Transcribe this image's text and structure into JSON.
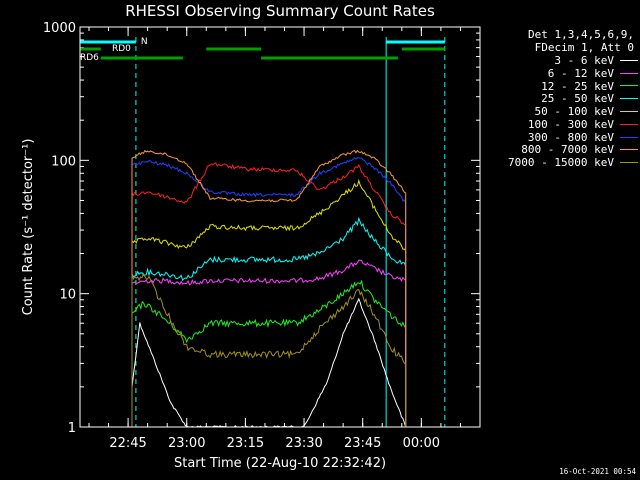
{
  "chart_data": {
    "type": "line",
    "title": "RHESSI Observing Summary Count Rates",
    "xlabel": "Start Time (22-Aug-10 22:32:42)",
    "ylabel": "Count Rate (s⁻¹ detector⁻¹)",
    "yscale": "log",
    "ylim": [
      1,
      1000
    ],
    "y_ticks": [
      {
        "value": 1,
        "label": "1"
      },
      {
        "value": 10,
        "label": "10"
      },
      {
        "value": 100,
        "label": "100"
      },
      {
        "value": 1000,
        "label": "1000"
      }
    ],
    "xlim": [
      "22:32:42",
      "00:15:00"
    ],
    "x_ticks": [
      {
        "time": "22:45",
        "label": "22:45"
      },
      {
        "time": "23:00",
        "label": "23:00"
      },
      {
        "time": "23:15",
        "label": "23:15"
      },
      {
        "time": "23:30",
        "label": "23:30"
      },
      {
        "time": "23:45",
        "label": "23:45"
      },
      {
        "time": "00:00",
        "label": "00:00"
      }
    ],
    "legend_header": [
      "Det 1,3,4,5,6,9,",
      "FDecim 1, Att 0"
    ],
    "legend_position": "right",
    "series": [
      {
        "name": "3 - 6 keV",
        "color": "#ffffff",
        "points": [
          [
            "22:46",
            "2"
          ],
          [
            "22:48",
            "6"
          ],
          [
            "22:52",
            "3"
          ],
          [
            "22:56",
            "1.5"
          ],
          [
            "23:00",
            "1"
          ],
          [
            "23:06",
            "1"
          ],
          [
            "23:30",
            "1"
          ],
          [
            "23:36",
            "2.2"
          ],
          [
            "23:40",
            "5"
          ],
          [
            "23:44",
            "9"
          ],
          [
            "23:48",
            "4.5"
          ],
          [
            "23:52",
            "2"
          ],
          [
            "23:56",
            "1"
          ]
        ]
      },
      {
        "name": "6 - 12 keV",
        "color": "#ff40ff",
        "points": [
          [
            "22:46",
            "12"
          ],
          [
            "22:50",
            "12.5"
          ],
          [
            "22:55",
            "12.5"
          ],
          [
            "23:00",
            "12"
          ],
          [
            "23:06",
            "12.5"
          ],
          [
            "23:15",
            "12.5"
          ],
          [
            "23:28",
            "12.5"
          ],
          [
            "23:34",
            "13"
          ],
          [
            "23:40",
            "15"
          ],
          [
            "23:44",
            "17.5"
          ],
          [
            "23:48",
            "15.5"
          ],
          [
            "23:52",
            "13.5"
          ],
          [
            "23:56",
            "12.5"
          ]
        ]
      },
      {
        "name": "12 - 25 keV",
        "color": "#22ee22",
        "points": [
          [
            "22:46",
            "7"
          ],
          [
            "22:49",
            "8.5"
          ],
          [
            "22:53",
            "7"
          ],
          [
            "22:57",
            "5.5"
          ],
          [
            "23:00",
            "4.5"
          ],
          [
            "23:06",
            "6"
          ],
          [
            "23:15",
            "6"
          ],
          [
            "23:28",
            "6"
          ],
          [
            "23:34",
            "7.5"
          ],
          [
            "23:40",
            "10"
          ],
          [
            "23:44",
            "12.5"
          ],
          [
            "23:48",
            "9"
          ],
          [
            "23:52",
            "7"
          ],
          [
            "23:56",
            "5.5"
          ]
        ]
      },
      {
        "name": "25 - 50 keV",
        "color": "#00ffff",
        "points": [
          [
            "22:46",
            "14"
          ],
          [
            "22:50",
            "14.5"
          ],
          [
            "22:55",
            "14"
          ],
          [
            "23:00",
            "13"
          ],
          [
            "23:06",
            "18"
          ],
          [
            "23:15",
            "18"
          ],
          [
            "23:28",
            "18"
          ],
          [
            "23:34",
            "20"
          ],
          [
            "23:40",
            "26"
          ],
          [
            "23:44",
            "35"
          ],
          [
            "23:48",
            "25"
          ],
          [
            "23:52",
            "19"
          ],
          [
            "23:56",
            "16"
          ]
        ]
      },
      {
        "name": "50 - 100 keV",
        "color": "#e0e000",
        "points": [
          [
            "22:46",
            "24"
          ],
          [
            "22:50",
            "26"
          ],
          [
            "22:55",
            "24"
          ],
          [
            "23:00",
            "22"
          ],
          [
            "23:06",
            "32"
          ],
          [
            "23:15",
            "31"
          ],
          [
            "23:28",
            "31"
          ],
          [
            "23:34",
            "40"
          ],
          [
            "23:40",
            "55"
          ],
          [
            "23:44",
            "68"
          ],
          [
            "23:48",
            "44"
          ],
          [
            "23:52",
            "28"
          ],
          [
            "23:56",
            "21"
          ]
        ]
      },
      {
        "name": "100 - 300 keV",
        "color": "#ff2020",
        "points": [
          [
            "22:46",
            "55"
          ],
          [
            "22:50",
            "58"
          ],
          [
            "22:55",
            "53"
          ],
          [
            "23:00",
            "48"
          ],
          [
            "23:06",
            "95"
          ],
          [
            "23:15",
            "86"
          ],
          [
            "23:28",
            "84"
          ],
          [
            "23:34",
            "60"
          ],
          [
            "23:40",
            "75"
          ],
          [
            "23:44",
            "90"
          ],
          [
            "23:48",
            "60"
          ],
          [
            "23:52",
            "40"
          ],
          [
            "23:56",
            "33"
          ]
        ]
      },
      {
        "name": "300 - 800 keV",
        "color": "#2040ff",
        "points": [
          [
            "22:46",
            "92"
          ],
          [
            "22:50",
            "98"
          ],
          [
            "22:55",
            "92"
          ],
          [
            "23:00",
            "80"
          ],
          [
            "23:06",
            "58"
          ],
          [
            "23:15",
            "55"
          ],
          [
            "23:28",
            "55"
          ],
          [
            "23:34",
            "80"
          ],
          [
            "23:40",
            "95"
          ],
          [
            "23:44",
            "105"
          ],
          [
            "23:48",
            "88"
          ],
          [
            "23:52",
            "68"
          ],
          [
            "23:56",
            "48"
          ]
        ]
      },
      {
        "name": "800 - 7000 keV",
        "color": "#ff9933",
        "points": [
          [
            "22:46",
            "105"
          ],
          [
            "22:50",
            "118"
          ],
          [
            "22:55",
            "110"
          ],
          [
            "23:00",
            "95"
          ],
          [
            "23:06",
            "52"
          ],
          [
            "23:15",
            "50"
          ],
          [
            "23:28",
            "50"
          ],
          [
            "23:34",
            "90"
          ],
          [
            "23:40",
            "110"
          ],
          [
            "23:44",
            "118"
          ],
          [
            "23:48",
            "103"
          ],
          [
            "23:52",
            "80"
          ],
          [
            "23:56",
            "57"
          ]
        ]
      },
      {
        "name": "7000 - 15000 keV",
        "color": "#a09020",
        "points": [
          [
            "22:46",
            "13"
          ],
          [
            "22:50",
            "13.5"
          ],
          [
            "22:54",
            "8"
          ],
          [
            "22:58",
            "5"
          ],
          [
            "23:00",
            "4"
          ],
          [
            "23:06",
            "3.5"
          ],
          [
            "23:28",
            "3.5"
          ],
          [
            "23:34",
            "5.5"
          ],
          [
            "23:40",
            "8"
          ],
          [
            "23:44",
            "10.5"
          ],
          [
            "23:48",
            "7"
          ],
          [
            "23:52",
            "4"
          ],
          [
            "23:56",
            "3"
          ]
        ]
      }
    ],
    "state_bars": [
      {
        "label": "N",
        "color": "#00ffff",
        "segments": [
          [
            "22:32:42",
            "22:47"
          ],
          [
            "23:51",
            "00:06"
          ]
        ]
      },
      {
        "label": "RD0",
        "color": "#00a000",
        "segments": [
          [
            "22:32:42",
            "22:38"
          ],
          [
            "23:05",
            "23:19"
          ],
          [
            "23:55",
            "00:06"
          ]
        ]
      },
      {
        "label": "RD6",
        "color": "#00a000",
        "segments": [
          [
            "22:38",
            "22:59"
          ],
          [
            "23:19",
            "23:54"
          ]
        ]
      }
    ],
    "vertical_markers": [
      {
        "color": "#00ffff",
        "solid": true,
        "times": [
          "22:32:42",
          "23:51"
        ]
      },
      {
        "color": "#00ffff",
        "solid": false,
        "times": [
          "22:47",
          "00:06"
        ]
      }
    ]
  },
  "footer": {
    "timestamp": "16-Oct-2021 00:54"
  }
}
